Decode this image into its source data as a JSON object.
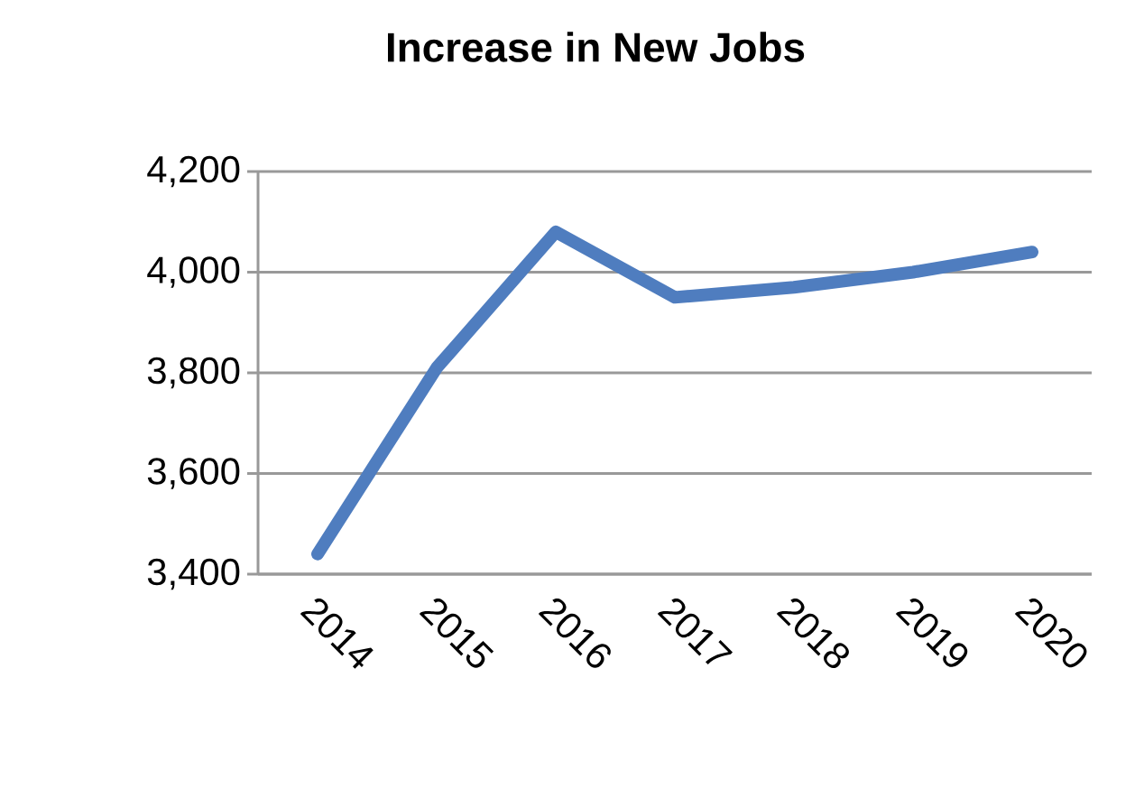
{
  "chart_data": {
    "type": "line",
    "title": "Increase in New Jobs",
    "categories": [
      "2014",
      "2015",
      "2016",
      "2017",
      "2018",
      "2019",
      "2020"
    ],
    "series": [
      {
        "color": "#4f7dbf",
        "values": [
          3440,
          3810,
          4080,
          3950,
          3970,
          4000,
          4040
        ]
      }
    ],
    "ylim": [
      3400,
      4200
    ],
    "yticks": [
      {
        "value": 3400,
        "label": "3,400"
      },
      {
        "value": 3600,
        "label": "3,600"
      },
      {
        "value": 3800,
        "label": "3,800"
      },
      {
        "value": 4000,
        "label": "4,000"
      },
      {
        "value": 4200,
        "label": "4,200"
      }
    ],
    "grid": "y",
    "marker": "none",
    "line_style": "solid"
  }
}
